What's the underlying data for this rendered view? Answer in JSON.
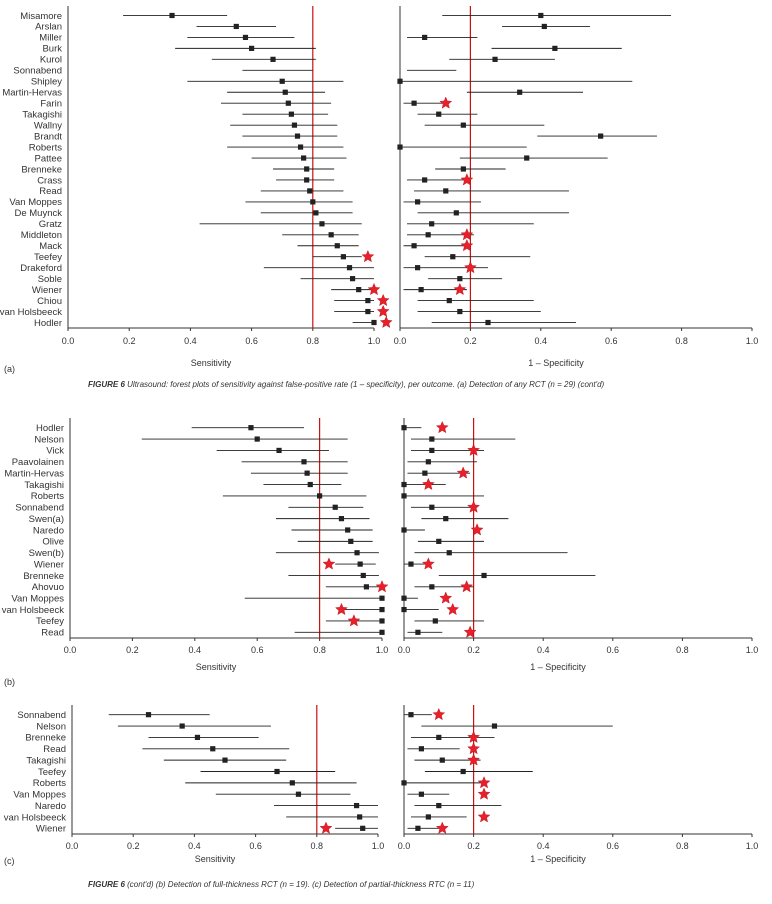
{
  "figure_title": "FIGURE 6",
  "caption_a": "Ultrasound: forest plots of sensitivity against false-positive rate (1 – specificity), per outcome. (a) Detection of any RCT (n = 29) (cont'd)",
  "figure_title_b": "FIGURE 6",
  "caption_b": "(cont'd)  (b) Detection of full-thickness RCT (n = 19). (c) Detection of partial-thickness RTC (n = 11)",
  "colors": {
    "line": "#222222",
    "marker": "#222222",
    "ref_line": "#cc1111",
    "star": "#e8202a"
  },
  "chart_data": [
    {
      "type": "forest",
      "panel_label": "(a)",
      "studies": [
        "Misamore",
        "Arslan",
        "Miller",
        "Burk",
        "Kurol",
        "Sonnabend",
        "Shipley",
        "Martin-Hervas",
        "Farin",
        "Takagishi",
        "Wallny",
        "Brandt",
        "Roberts",
        "Pattee",
        "Brenneke",
        "Crass",
        "Read",
        "Van Moppes",
        "De Muynck",
        "Gratz",
        "Middleton",
        "Mack",
        "Teefey",
        "Drakeford",
        "Soble",
        "Wiener",
        "Chiou",
        "van Holsbeeck",
        "Hodler"
      ],
      "left": {
        "xlabel": "Sensitivity",
        "xlim": [
          0,
          1.0
        ],
        "ticks": [
          "0.0",
          "0.2",
          "0.4",
          "0.6",
          "0.8",
          "1.0"
        ],
        "ref_line": 0.8,
        "est": [
          0.34,
          0.55,
          0.58,
          0.6,
          0.67,
          null,
          0.7,
          0.71,
          0.72,
          0.73,
          0.74,
          0.75,
          0.76,
          0.77,
          0.78,
          0.78,
          0.79,
          0.8,
          0.81,
          0.83,
          0.86,
          0.88,
          0.9,
          0.92,
          0.93,
          0.95,
          0.98,
          0.98,
          1.0
        ],
        "lo": [
          0.18,
          0.42,
          0.39,
          0.35,
          0.47,
          0.57,
          0.39,
          0.52,
          0.5,
          0.57,
          0.53,
          0.57,
          0.52,
          0.6,
          0.67,
          0.68,
          0.63,
          0.58,
          0.63,
          0.43,
          0.7,
          0.75,
          0.8,
          0.64,
          0.76,
          0.86,
          0.87,
          0.87,
          0.93
        ],
        "hi": [
          0.52,
          0.68,
          0.74,
          0.81,
          0.81,
          0.8,
          0.9,
          0.84,
          0.86,
          0.85,
          0.88,
          0.88,
          0.9,
          0.91,
          0.87,
          0.87,
          0.9,
          0.93,
          0.93,
          0.96,
          0.95,
          0.95,
          0.96,
          1.0,
          1.0,
          1.0,
          1.0,
          1.0,
          1.0
        ],
        "star": [
          null,
          null,
          null,
          null,
          null,
          null,
          null,
          null,
          null,
          null,
          null,
          null,
          null,
          null,
          null,
          null,
          null,
          null,
          null,
          null,
          null,
          null,
          0.98,
          null,
          null,
          1.0,
          1.03,
          1.03,
          1.04
        ]
      },
      "right": {
        "xlabel": "1 – Specificity",
        "xlim": [
          0,
          1.0
        ],
        "ticks": [
          "0.0",
          "0.2",
          "0.4",
          "0.6",
          "0.8",
          "1.0"
        ],
        "ref_line": 0.2,
        "est": [
          0.4,
          0.41,
          0.07,
          0.44,
          0.27,
          null,
          0.0,
          0.34,
          0.04,
          0.11,
          0.18,
          0.57,
          0.0,
          0.36,
          0.18,
          0.07,
          0.13,
          0.05,
          0.16,
          0.09,
          0.08,
          0.04,
          0.15,
          0.05,
          0.17,
          0.06,
          0.14,
          0.17,
          0.25
        ],
        "lo": [
          0.12,
          0.29,
          0.02,
          0.26,
          0.14,
          0.02,
          0.0,
          0.19,
          0.01,
          0.05,
          0.07,
          0.39,
          0.0,
          0.17,
          0.1,
          0.02,
          0.04,
          0.01,
          0.05,
          0.02,
          0.02,
          0.01,
          0.07,
          0.01,
          0.08,
          0.01,
          0.05,
          0.05,
          0.09
        ]
      }
    }
  ]
}
